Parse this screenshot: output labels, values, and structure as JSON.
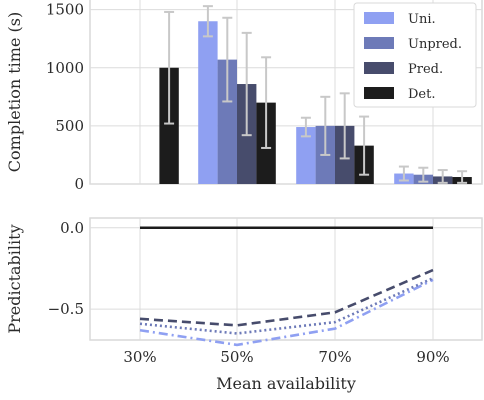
{
  "chart_data": [
    {
      "type": "bar",
      "ylabel": "Completion time (s)",
      "ylim": [
        0,
        1600
      ],
      "yticks": [
        0,
        500,
        1000,
        1500
      ],
      "categories": [
        "30%",
        "50%",
        "70%",
        "90%"
      ],
      "grid": true,
      "legend_position": "top-right",
      "series": [
        {
          "name": "Uni.",
          "color": "#8fa0f2",
          "values": [
            null,
            1400,
            490,
            90
          ],
          "errors": [
            null,
            130,
            80,
            60
          ]
        },
        {
          "name": "Unpred.",
          "color": "#6d7ab8",
          "values": [
            null,
            1070,
            500,
            80
          ],
          "errors": [
            null,
            360,
            250,
            60
          ]
        },
        {
          "name": "Pred.",
          "color": "#474c6c",
          "values": [
            null,
            860,
            500,
            65
          ],
          "errors": [
            null,
            440,
            280,
            55
          ]
        },
        {
          "name": "Det.",
          "color": "#1c1c1c",
          "values": [
            1000,
            700,
            330,
            60
          ],
          "errors": [
            480,
            390,
            250,
            50
          ]
        }
      ]
    },
    {
      "type": "line",
      "ylabel": "Predictability",
      "xlabel": "Mean availability",
      "x": [
        "30%",
        "50%",
        "70%",
        "90%"
      ],
      "ylim": [
        -0.69,
        0.06
      ],
      "yticks": [
        0.0,
        -0.5
      ],
      "ytick_labels": [
        "0.0",
        "−0.5"
      ],
      "grid": true,
      "series": [
        {
          "color": "#8fa0f2",
          "dash": "dashdot",
          "values": [
            -0.63,
            -0.72,
            -0.62,
            -0.32
          ]
        },
        {
          "color": "#6d7ab8",
          "dash": "dotted",
          "values": [
            -0.59,
            -0.65,
            -0.58,
            -0.31
          ]
        },
        {
          "color": "#474c6c",
          "dash": "dashed",
          "values": [
            -0.56,
            -0.6,
            -0.52,
            -0.26
          ]
        },
        {
          "color": "#1c1c1c",
          "dash": "solid",
          "values": [
            0.0,
            0.0,
            0.0,
            0.0
          ]
        }
      ]
    }
  ]
}
